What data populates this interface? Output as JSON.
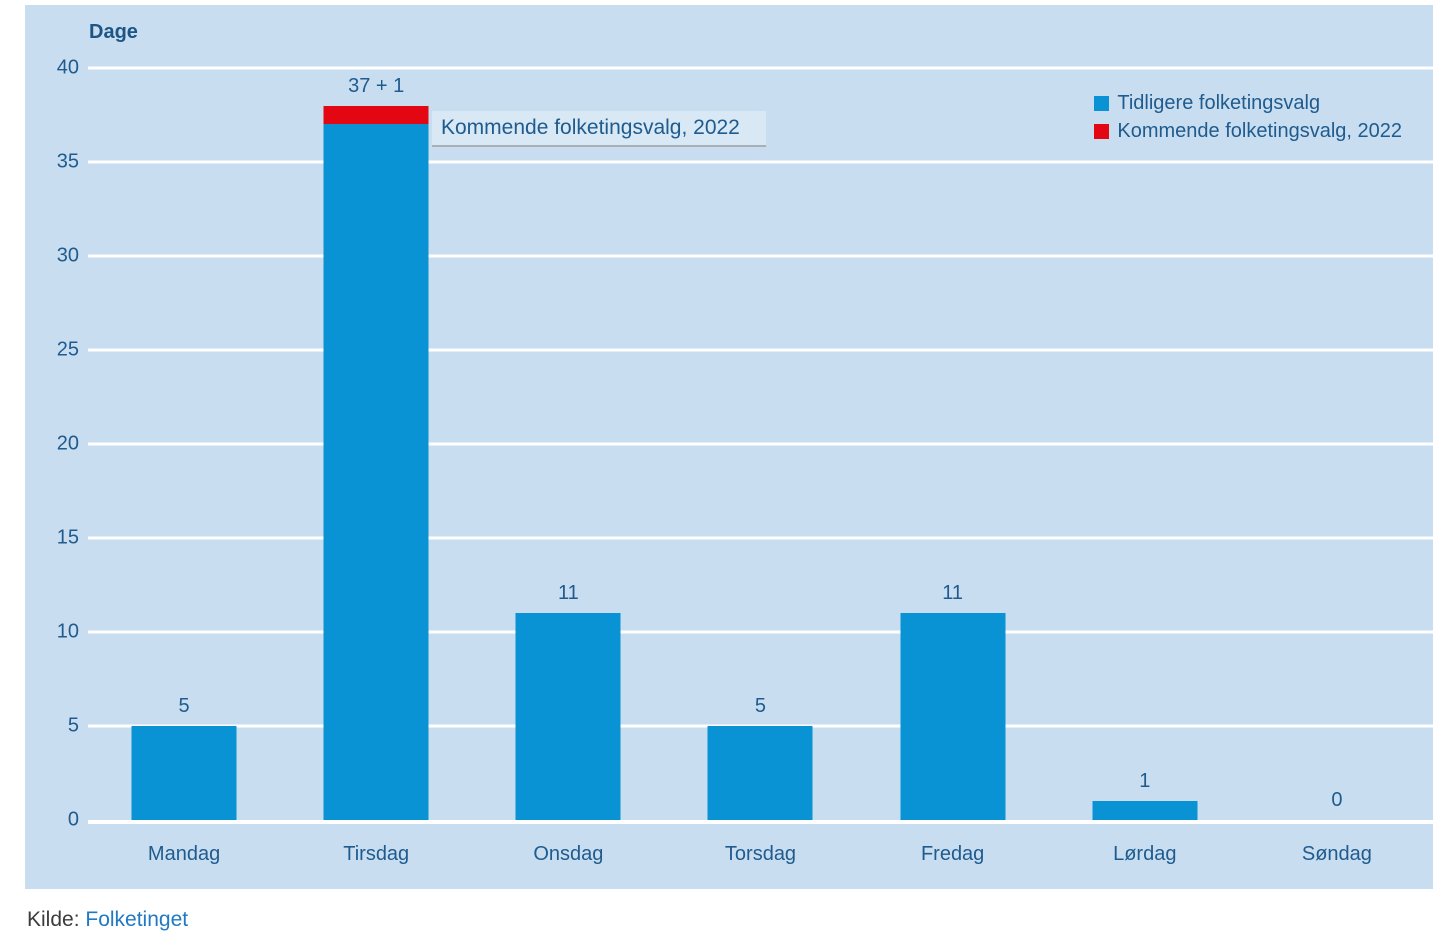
{
  "chart_data": {
    "type": "bar",
    "stacked": true,
    "title": "Dage",
    "categories": [
      "Mandag",
      "Tirsdag",
      "Onsdag",
      "Torsdag",
      "Fredag",
      "Lørdag",
      "Søndag"
    ],
    "series": [
      {
        "name": "Tidligere folketingsvalg",
        "color": "#0a93d4",
        "values": [
          5,
          37,
          11,
          5,
          11,
          1,
          0
        ]
      },
      {
        "name": "Kommende folketingsvalg, 2022",
        "color": "#e30613",
        "values": [
          0,
          1,
          0,
          0,
          0,
          0,
          0
        ]
      }
    ],
    "bar_labels": [
      "5",
      "37 + 1",
      "11",
      "5",
      "11",
      "1",
      "0"
    ],
    "ylabel": "Dage",
    "ylim": [
      0,
      40
    ],
    "ytick_step": 5,
    "yticks": [
      40,
      35,
      30,
      25,
      20,
      15,
      10,
      5,
      0
    ],
    "grid": true,
    "gridline_color": "#ffffff",
    "legend_position": "top-right",
    "annotation": {
      "text": "Kommende folketingsvalg, 2022",
      "points_to": "Tirsdag red segment"
    }
  },
  "colors": {
    "panel_background": "#c8def0",
    "bar_blue": "#0a93d4",
    "bar_red": "#e30613",
    "chart_text": "#1f5b8e",
    "gridline": "#ffffff",
    "annotation_underline": "#a9afb4",
    "source_text": "#3c3c3b",
    "source_link": "#2079c4"
  },
  "source": {
    "label": "Kilde:",
    "link_text": "Folketinget"
  }
}
